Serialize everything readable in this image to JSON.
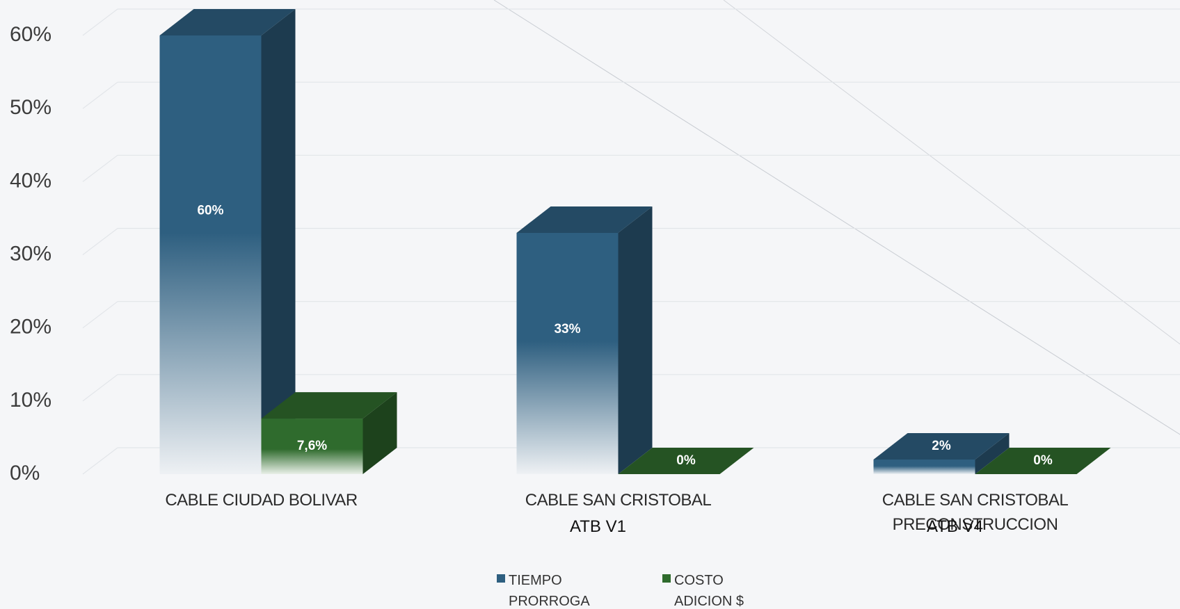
{
  "chart_data": {
    "type": "bar3d",
    "categories": [
      "CABLE CIUDAD BOLIVAR",
      "CABLE SAN CRISTOBAL",
      "CABLE SAN CRISTOBAL PRECONSTRUCCION"
    ],
    "annotations": [
      {
        "category": 1,
        "text": "ATB V1"
      },
      {
        "category": 2,
        "text": "ATB V4"
      }
    ],
    "series": [
      {
        "name": "TIEMPO PRORROGA",
        "color": "#2e5f80",
        "values": [
          60,
          33,
          2
        ],
        "value_labels": [
          "60%",
          "33%",
          "2%"
        ]
      },
      {
        "name": "COSTO ADICION $",
        "color": "#2f6b2d",
        "values": [
          7.6,
          0,
          0
        ],
        "value_labels": [
          "7,6%",
          "0%",
          "0%"
        ]
      }
    ],
    "ylim": [
      0,
      60
    ],
    "yticks": [
      {
        "value": 0,
        "label": "0%"
      },
      {
        "value": 10,
        "label": "10%"
      },
      {
        "value": 20,
        "label": "20%"
      },
      {
        "value": 30,
        "label": "30%"
      },
      {
        "value": 40,
        "label": "40%"
      },
      {
        "value": 50,
        "label": "50%"
      },
      {
        "value": 60,
        "label": "60%"
      }
    ],
    "grid": true
  }
}
